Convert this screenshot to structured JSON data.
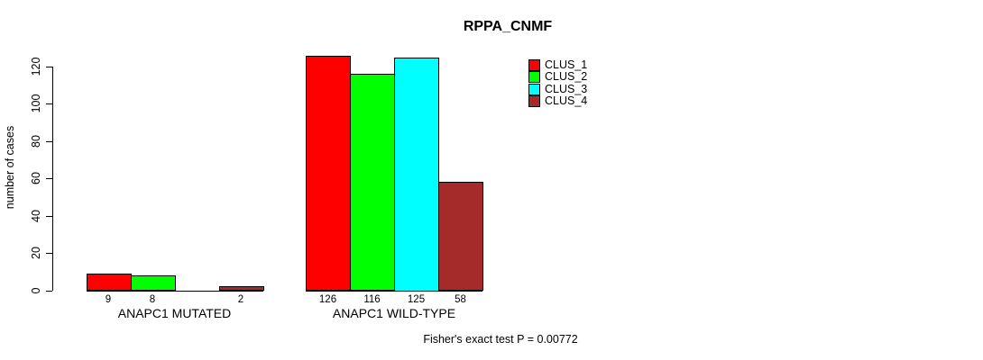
{
  "chart_data": {
    "type": "bar",
    "title": "RPPA_CNMF",
    "ylabel": "number of cases",
    "xlabel": "",
    "categories": [
      "ANAPC1 MUTATED",
      "ANAPC1 WILD-TYPE"
    ],
    "series": [
      {
        "name": "CLUS_1",
        "color": "#FF0000",
        "values": [
          9,
          126
        ]
      },
      {
        "name": "CLUS_2",
        "color": "#00FF00",
        "values": [
          8,
          116
        ]
      },
      {
        "name": "CLUS_3",
        "color": "#00FFFF",
        "values": [
          0,
          125
        ]
      },
      {
        "name": "CLUS_4",
        "color": "#A52A2A",
        "values": [
          2,
          58
        ]
      }
    ],
    "bar_value_labels": [
      [
        "9",
        "8",
        "",
        "2"
      ],
      [
        "126",
        "116",
        "125",
        "58"
      ]
    ],
    "yticks": [
      0,
      20,
      40,
      60,
      80,
      100,
      120
    ],
    "ylim": [
      0,
      126
    ],
    "grid": false,
    "legend_position": "top-right",
    "annotation": "Fisher's exact test P = 0.00772"
  }
}
